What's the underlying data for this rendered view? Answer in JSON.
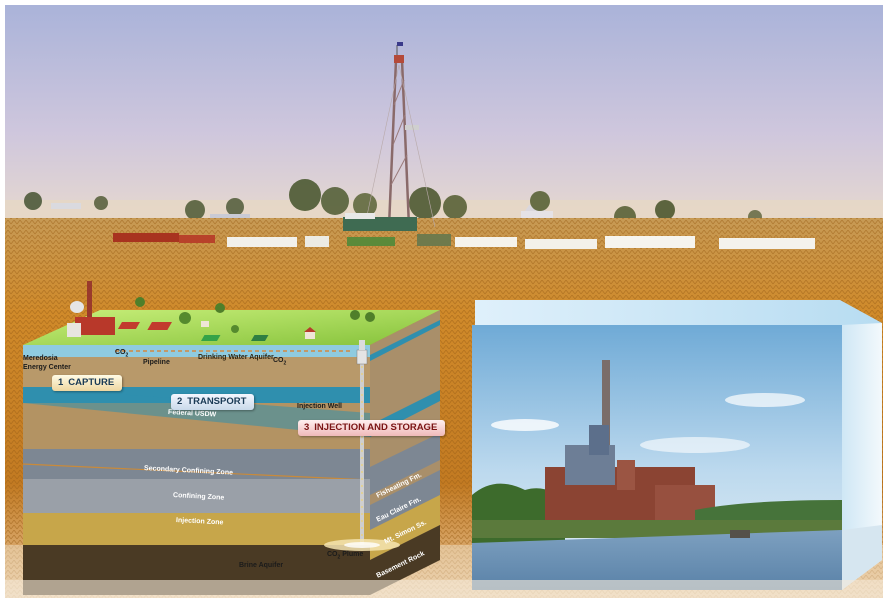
{
  "labels": {
    "energy_center": [
      "Meredosia",
      "Energy Center"
    ],
    "pipeline": "Pipeline",
    "drinking_water_aquifer": "Drinking Water Aquifer",
    "co2_near_plant": "CO",
    "co2_near_pipeline": "CO",
    "co2_subscript": "2",
    "injection_well": "Injection Well",
    "federal_usdw": "Federal USDW",
    "secondary_confining_zone": "Secondary Confining Zone",
    "confining_zone": "Confining Zone",
    "injection_zone": "Injection Zone",
    "brine_aquifer": "Brine Aquifer",
    "co2_plume": "CO",
    "basement_rock": "Basement Rock",
    "fisheating_fm": "Fisheating Fm.",
    "eau_claire_fm": "Eau Claire Fm.",
    "mt_simon_ss": "Mt. Simon Ss."
  },
  "steps": [
    {
      "number": "1",
      "label": "CAPTURE"
    },
    {
      "number": "2",
      "label": "TRANSPORT"
    },
    {
      "number": "3",
      "label": "INJECTION AND STORAGE"
    }
  ],
  "colors": {
    "sky": "#c8c2dc",
    "cornfield": "#c98a2a",
    "surface_grass": "#9ed24a",
    "usdw_band": "#2f8fae",
    "confining_gray": "#7d8793",
    "injection_zone": "#c7a64a",
    "basement": "#4a3a24",
    "step_injection_text": "#7a1414"
  }
}
